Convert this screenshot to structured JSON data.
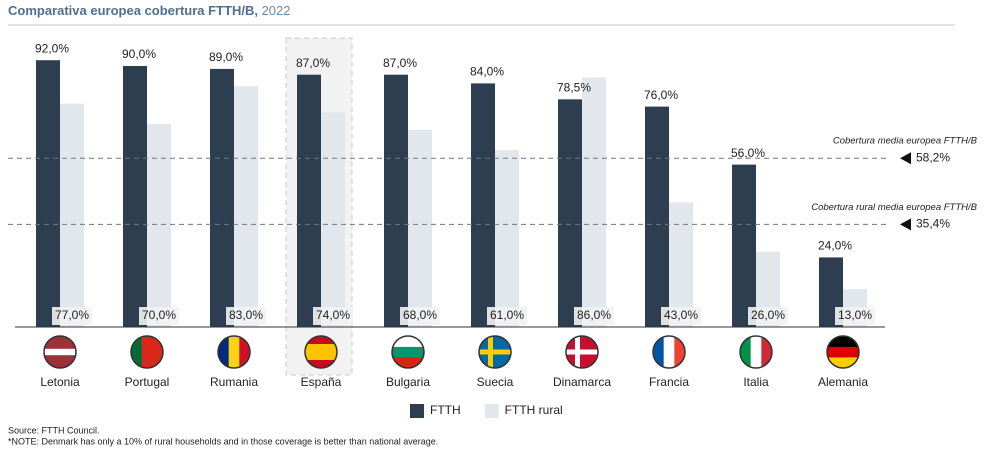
{
  "chart_data": {
    "type": "bar",
    "title": "Comparativa europea cobertura FTTH/B,",
    "subtitle": "2022",
    "categories": [
      "Letonia",
      "Portugal",
      "Rumania",
      "España",
      "Bulgaria",
      "Suecia",
      "Dinamarca",
      "Francia",
      "Italia",
      "Alemania"
    ],
    "series": [
      {
        "name": "FTTH",
        "color": "#2d3e50",
        "values": [
          92,
          90,
          89,
          87,
          87,
          84,
          78.5,
          76,
          56,
          24
        ],
        "value_labels": [
          "92,0%",
          "90,0%",
          "89,0%",
          "87,0%",
          "87,0%",
          "84,0%",
          "78,5%",
          "76,0%",
          "56,0%",
          "24,0%"
        ]
      },
      {
        "name": "FTTH rural",
        "color": "#e1e7ed",
        "values": [
          77,
          70,
          83,
          74,
          68,
          61,
          86,
          43,
          26,
          13
        ],
        "value_labels": [
          "77,0%",
          "70,0%",
          "83,0%",
          "74,0%",
          "68,0%",
          "61,0%",
          "86,0%",
          "43,0%",
          "26,0%",
          "13,0%"
        ]
      }
    ],
    "ylim": [
      0,
      100
    ],
    "highlight_index": 3,
    "reference_lines": [
      {
        "value": 58.2,
        "label": "58,2%",
        "text": "Cobertura media europea FTTH/B"
      },
      {
        "value": 35.4,
        "label": "35,4%",
        "text": "Cobertura rural media europea FTTH/B"
      }
    ],
    "source": "Source: FTTH Council.",
    "note": "*NOTE: Denmark has only a 10% of rural households and in those coverage is better than national average."
  }
}
